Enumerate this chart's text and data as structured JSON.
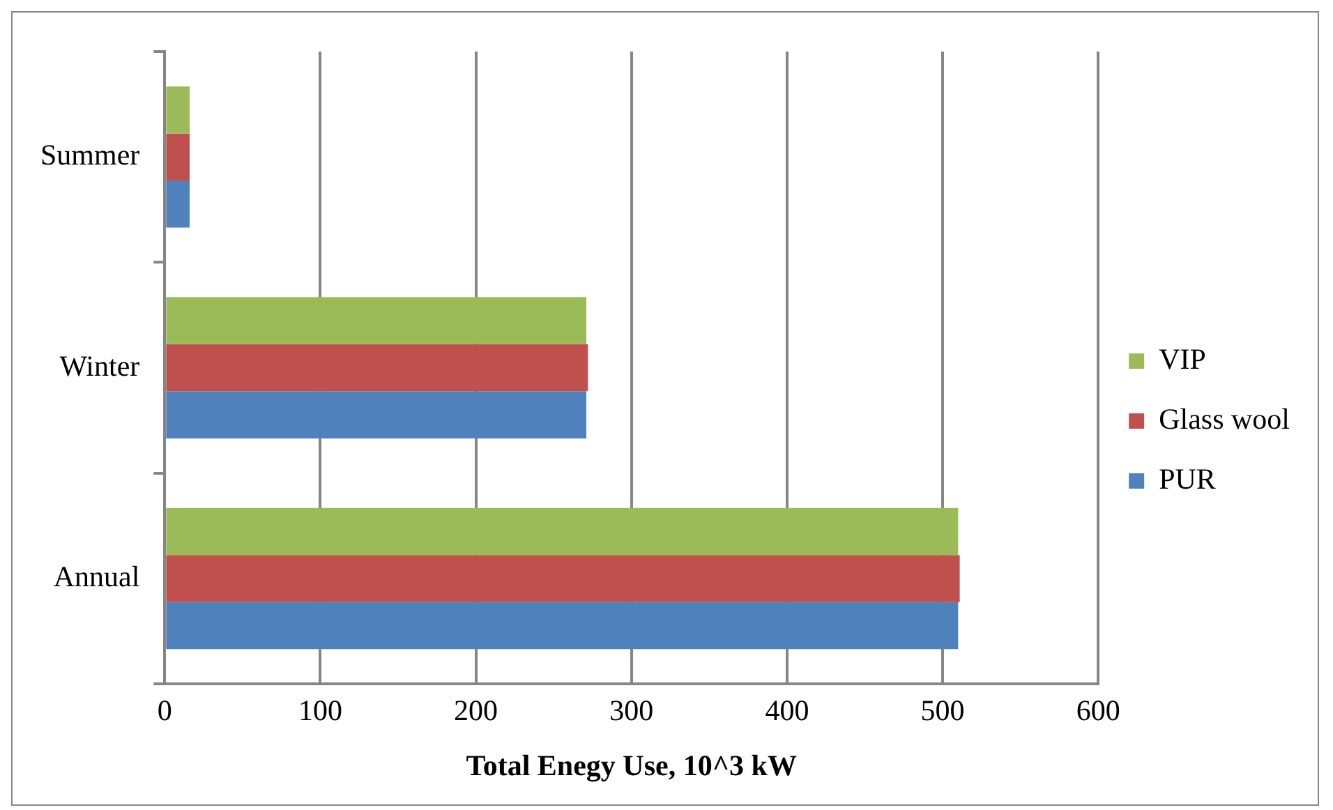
{
  "chart_data": {
    "type": "bar",
    "orientation": "horizontal",
    "xlabel": "Total Enegy Use, 10^3 kW",
    "categories": [
      "Summer",
      "Winter",
      "Annual"
    ],
    "series": [
      {
        "name": "VIP",
        "color": "#9bbb59",
        "values": [
          16,
          271,
          510
        ]
      },
      {
        "name": "Glass wool",
        "color": "#c0504d",
        "values": [
          16,
          272,
          511
        ]
      },
      {
        "name": "PUR",
        "color": "#4f81bd",
        "values": [
          16,
          271,
          510
        ]
      }
    ],
    "xlim": [
      0,
      600
    ],
    "xticks": [
      0,
      100,
      200,
      300,
      400,
      500,
      600
    ],
    "grid": "x",
    "legend": "right"
  }
}
